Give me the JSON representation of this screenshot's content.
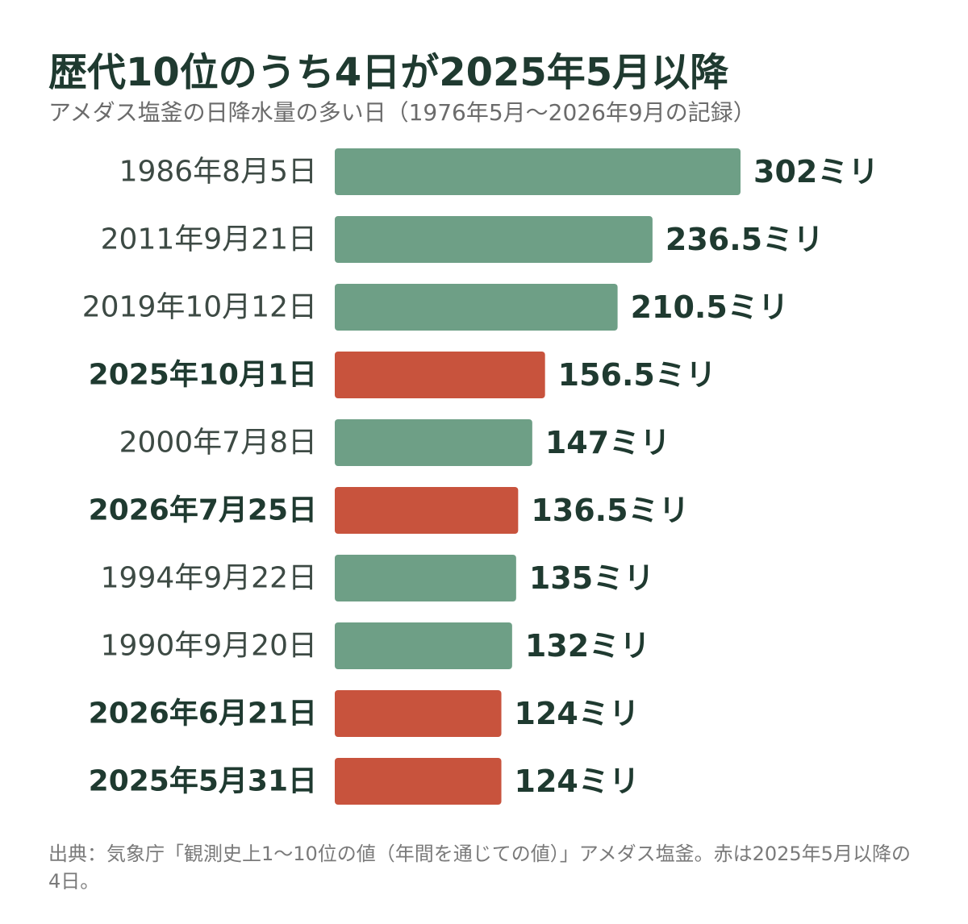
{
  "chart_data": {
    "type": "bar",
    "orientation": "horizontal",
    "title": "歴代10位のうち4日が2025年5月以降",
    "subtitle": "アメダス塩釜の日降水量の多い日（1976年5月～2026年9月の記録）",
    "categories": [
      "1986年8月5日",
      "2011年9月21日",
      "2019年10月12日",
      "2025年10月1日",
      "2000年7月8日",
      "2026年7月25日",
      "1994年9月22日",
      "1990年9月20日",
      "2026年6月21日",
      "2025年5月31日"
    ],
    "values": [
      302,
      236.5,
      210.5,
      156.5,
      147,
      136.5,
      135,
      132,
      124,
      124
    ],
    "value_labels": [
      "302ミリ",
      "236.5ミリ",
      "210.5ミリ",
      "156.5ミリ",
      "147ミリ",
      "136.5ミリ",
      "135ミリ",
      "132ミリ",
      "124ミリ",
      "124ミリ"
    ],
    "highlight": [
      false,
      false,
      false,
      true,
      false,
      true,
      false,
      false,
      true,
      true
    ],
    "colors": {
      "normal": "#6e9f86",
      "highlight": "#c8533d"
    },
    "xlim": [
      0,
      302
    ],
    "grid": false,
    "legend": "none"
  },
  "source": "出典：気象庁「観測史上1～10位の値（年間を通じての値）」アメダス塩釜。赤は2025年5月以降の4日。"
}
